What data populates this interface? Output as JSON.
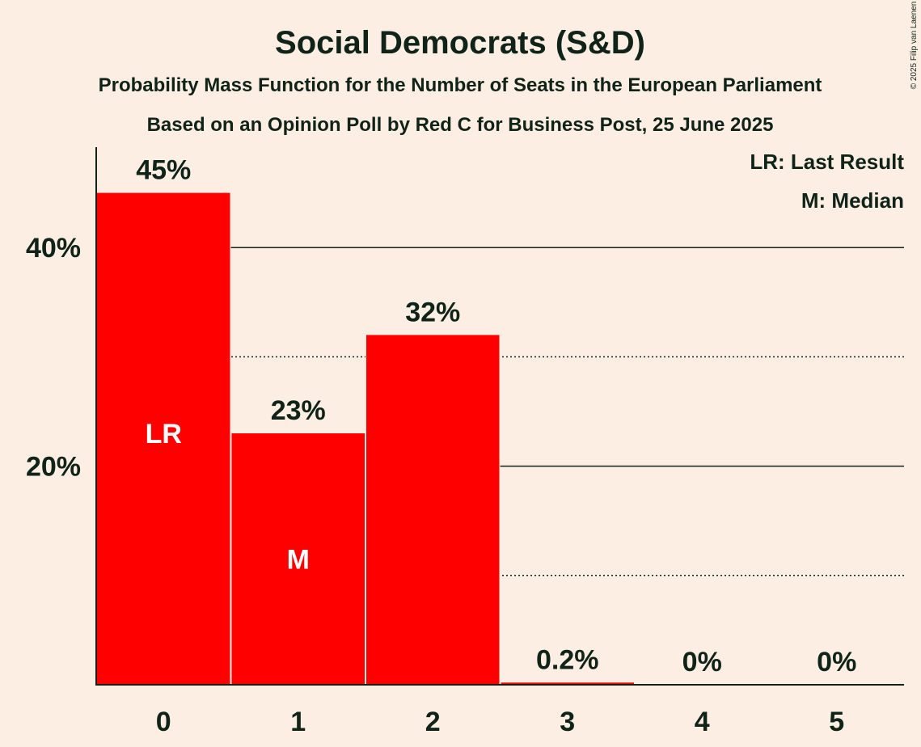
{
  "colors": {
    "background": "#FDEEE3",
    "bar": "#FF0000",
    "text": "#0F2318",
    "bar_label": "#FFFFFF"
  },
  "chart_data": {
    "type": "bar",
    "title": "Social Democrats (S&D)",
    "subtitle": "Probability Mass Function for the Number of Seats in the European Parliament",
    "subtitle2": "Based on an Opinion Poll by Red C for Business Post, 25 June 2025",
    "copyright": "© 2025 Filip van Laenen",
    "categories": [
      "0",
      "1",
      "2",
      "3",
      "4",
      "5"
    ],
    "values": [
      45,
      23,
      32,
      0.2,
      0,
      0
    ],
    "value_labels": [
      "45%",
      "23%",
      "32%",
      "0.2%",
      "0%",
      "0%"
    ],
    "bar_annotations": [
      {
        "category": "0",
        "text": "LR"
      },
      {
        "category": "1",
        "text": "M"
      }
    ],
    "ylim": [
      0,
      49
    ],
    "yticks": [
      {
        "value": 20,
        "label": "20%"
      },
      {
        "value": 40,
        "label": "40%"
      }
    ],
    "minor_gridlines": [
      10,
      30
    ],
    "legend": {
      "position": "top-right",
      "entries": [
        "LR: Last Result",
        "M: Median"
      ]
    }
  }
}
